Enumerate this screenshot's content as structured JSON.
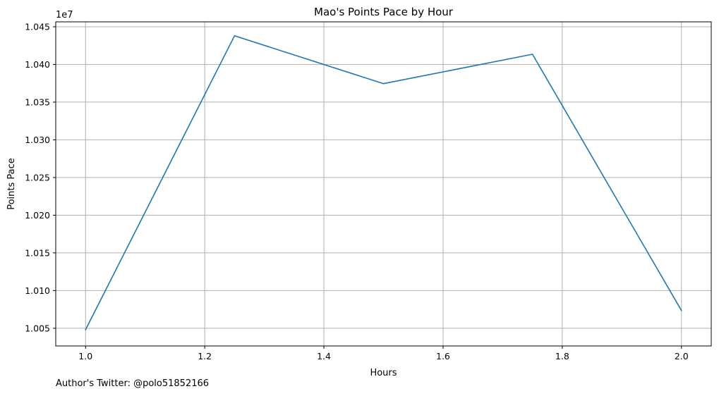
{
  "chart_data": {
    "type": "line",
    "title": "Mao's Points Pace by Hour",
    "xlabel": "Hours",
    "ylabel": "Points Pace",
    "y_offset_label": "1e7",
    "xlim": [
      0.95,
      2.05
    ],
    "ylim": [
      10026500,
      10456500
    ],
    "x_ticks": [
      1.0,
      1.2,
      1.4,
      1.6,
      1.8,
      2.0
    ],
    "x_tick_labels": [
      "1.0",
      "1.2",
      "1.4",
      "1.6",
      "1.8",
      "2.0"
    ],
    "y_ticks": [
      10050000,
      10100000,
      10150000,
      10200000,
      10250000,
      10300000,
      10350000,
      10400000,
      10450000
    ],
    "y_tick_labels": [
      "1.005",
      "1.010",
      "1.015",
      "1.020",
      "1.025",
      "1.030",
      "1.035",
      "1.040",
      "1.045"
    ],
    "grid": true,
    "series": [
      {
        "color": "#1f77b4",
        "x": [
          1.0,
          1.25,
          1.5,
          1.75,
          2.0
        ],
        "values": [
          10048000,
          10438000,
          10374500,
          10413500,
          10073500
        ]
      }
    ]
  },
  "footer": {
    "text": "Author's Twitter: @polo51852166"
  }
}
